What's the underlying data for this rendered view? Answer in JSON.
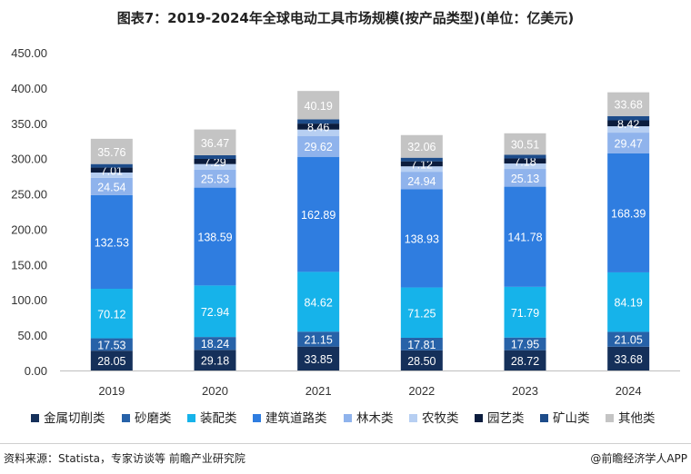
{
  "title": "图表7：2019-2024年全球电动工具市场规模(按产品类型)(单位：亿美元)",
  "source": "资料来源：Statista，专家访谈等 前瞻产业研究院",
  "brand": "@前瞻经济学人APP",
  "chart_data": {
    "type": "bar",
    "stacked": true,
    "categories": [
      "2019",
      "2020",
      "2021",
      "2022",
      "2023",
      "2024"
    ],
    "y_ticks": [
      "0.00",
      "50.00",
      "100.00",
      "150.00",
      "200.00",
      "250.00",
      "300.00",
      "350.00",
      "400.00",
      "450.00"
    ],
    "ylim": [
      0,
      450
    ],
    "grid": false,
    "legend_position": "bottom",
    "series": [
      {
        "name": "金属切削类",
        "color": "#15305a",
        "values": [
          28.05,
          29.18,
          33.85,
          28.5,
          28.72,
          33.68
        ],
        "labels": [
          "28.05",
          "29.18",
          "33.85",
          "28.50",
          "28.72",
          "33.68"
        ]
      },
      {
        "name": "砂磨类",
        "color": "#2762a8",
        "values": [
          17.53,
          18.24,
          21.15,
          17.81,
          17.95,
          21.05
        ],
        "labels": [
          "17.53",
          "18.24",
          "21.15",
          "17.81",
          "17.95",
          "21.05"
        ]
      },
      {
        "name": "装配类",
        "color": "#16b3ea",
        "values": [
          70.12,
          72.94,
          84.62,
          71.25,
          71.79,
          84.19
        ],
        "labels": [
          "70.12",
          "72.94",
          "84.62",
          "71.25",
          "71.79",
          "84.19"
        ]
      },
      {
        "name": "建筑道路类",
        "color": "#2f7de0",
        "values": [
          132.53,
          138.59,
          162.89,
          138.93,
          141.78,
          168.39
        ],
        "labels": [
          "132.53",
          "138.59",
          "162.89",
          "138.93",
          "141.78",
          "168.39"
        ]
      },
      {
        "name": "林木类",
        "color": "#8fb3ec",
        "values": [
          24.54,
          25.53,
          29.62,
          24.94,
          25.13,
          29.47
        ],
        "labels": [
          "24.54",
          "25.53",
          "29.62",
          "24.94",
          "25.13",
          "29.47"
        ]
      },
      {
        "name": "农牧类",
        "color": "#b7cff2",
        "values": [
          7.5,
          7.8,
          9.0,
          7.6,
          7.7,
          9.0
        ],
        "labels": [
          "",
          "",
          "",
          "",
          "",
          ""
        ]
      },
      {
        "name": "园艺类",
        "color": "#0b1c3d",
        "values": [
          7.01,
          7.29,
          8.46,
          7.12,
          7.18,
          8.42
        ],
        "labels": [
          "7.01",
          "7.29",
          "8.46",
          "7.12",
          "7.18",
          "8.42"
        ]
      },
      {
        "name": "矿山类",
        "color": "#1d4c8a",
        "values": [
          5.0,
          5.2,
          6.0,
          5.1,
          5.1,
          6.0
        ],
        "labels": [
          "",
          "",
          "",
          "",
          "",
          ""
        ]
      },
      {
        "name": "其他类",
        "color": "#c4c4c4",
        "values": [
          35.76,
          36.47,
          40.19,
          32.06,
          30.51,
          33.68
        ],
        "labels": [
          "35.76",
          "36.47",
          "40.19",
          "32.06",
          "30.51",
          "33.68"
        ]
      }
    ]
  }
}
